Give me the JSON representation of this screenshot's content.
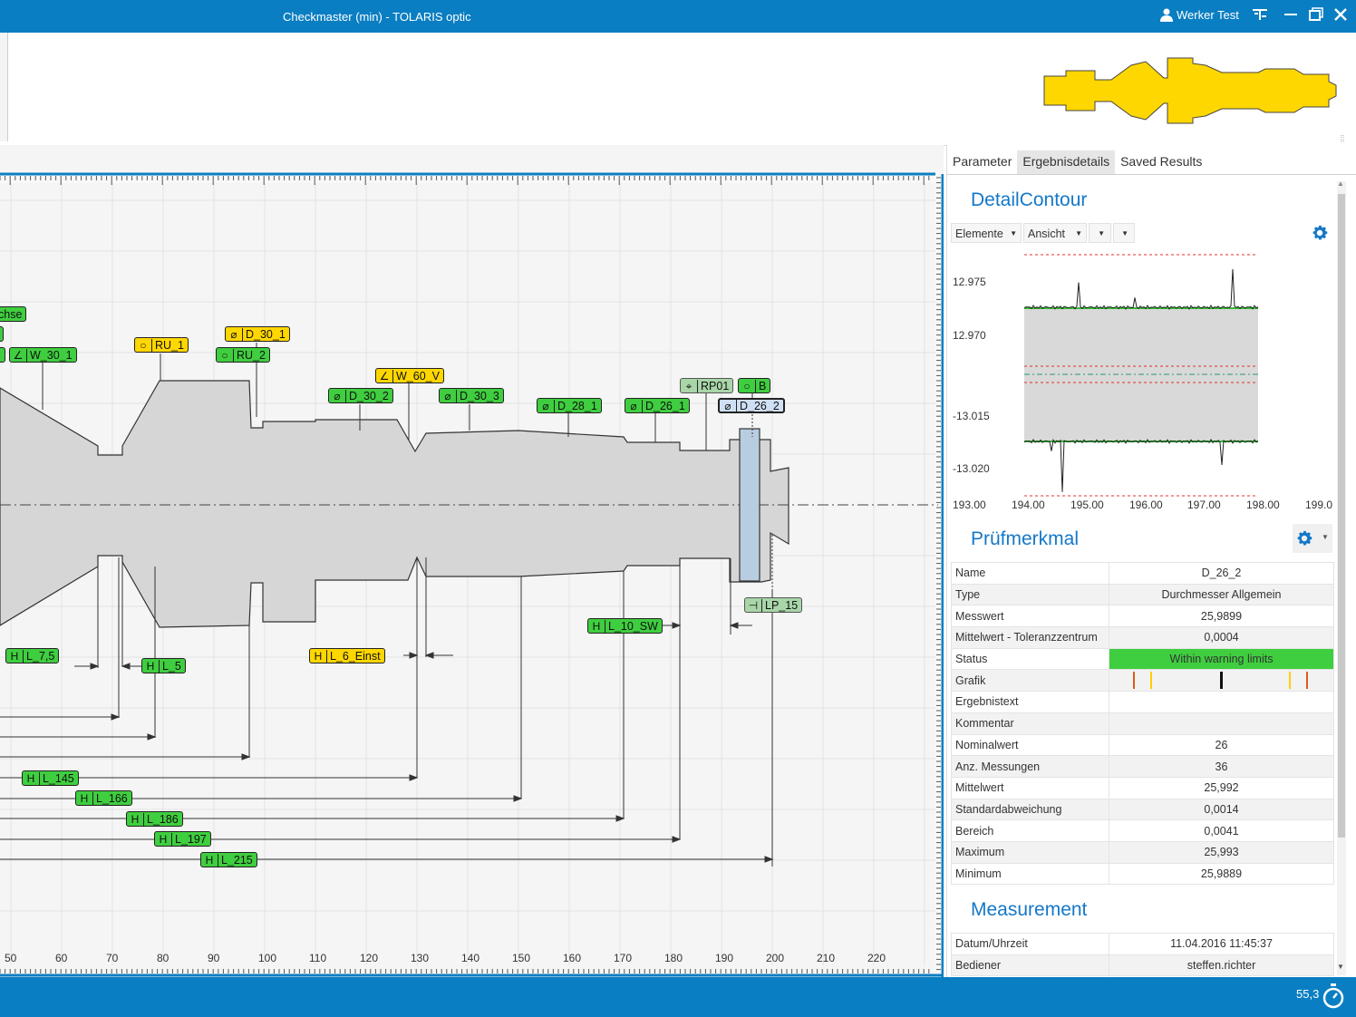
{
  "window": {
    "title": "Checkmaster (min) - TOLARIS optic",
    "user": "Werker  Test"
  },
  "tabs": [
    "Parameter",
    "Ergebnisdetails",
    "Saved Results"
  ],
  "detail_contour": {
    "title": "DetailContour",
    "dropdowns": [
      "Elemente",
      "Ansicht",
      "",
      ""
    ],
    "chart_data": {
      "type": "line",
      "title": "",
      "xlabel": "",
      "ylabel": "",
      "x_ticks": [
        "193.00",
        "194.00",
        "195.00",
        "196.00",
        "197.00",
        "198.00",
        "199.0"
      ],
      "y_ticks": [
        "12.975",
        "12.970",
        "-13.015",
        "-13.020"
      ],
      "xlim": [
        193.0,
        199.0
      ],
      "series": [
        {
          "x": [
            194.0,
            194.5,
            195.0,
            195.5,
            196.0,
            196.5,
            197.0,
            197.5,
            198.0
          ],
          "y": [
            12.9725,
            12.9725,
            12.9726,
            12.9724,
            12.9725,
            12.9726,
            12.9725,
            12.9727,
            12.9725
          ]
        },
        {
          "x": [
            194.0,
            194.5,
            195.0,
            195.5,
            196.0,
            196.5,
            197.0,
            197.5,
            198.0
          ],
          "y": [
            -13.0135,
            -13.0136,
            -13.0135,
            -13.0134,
            -13.0135,
            -13.0136,
            -13.0135,
            -13.0137,
            -13.0135
          ]
        }
      ],
      "grid": false
    }
  },
  "pruefmerkmal": {
    "title": "Prüfmerkmal",
    "rows": [
      {
        "k": "Name",
        "v": "D_26_2"
      },
      {
        "k": "Type",
        "v": "Durchmesser Allgemein"
      },
      {
        "k": "Messwert",
        "v": "25,9899"
      },
      {
        "k": "Mittelwert - Toleranzzentrum",
        "v": "0,0004"
      },
      {
        "k": "Status",
        "v": "Within warning limits"
      },
      {
        "k": "Grafik",
        "v": ""
      },
      {
        "k": "Ergebnistext",
        "v": ""
      },
      {
        "k": "Kommentar",
        "v": ""
      },
      {
        "k": "Nominalwert",
        "v": "26"
      },
      {
        "k": "Anz. Messungen",
        "v": "36"
      },
      {
        "k": "Mittelwert",
        "v": "25,992"
      },
      {
        "k": "Standardabweichung",
        "v": "0,0014"
      },
      {
        "k": "Bereich",
        "v": "0,0041"
      },
      {
        "k": "Maximum",
        "v": "25,993"
      },
      {
        "k": "Minimum",
        "v": "25,9889"
      }
    ],
    "status_color": "#3fce3f"
  },
  "measurement": {
    "title": "Measurement",
    "rows": [
      {
        "k": "Datum/Uhrzeit",
        "v": "11.04.2016 11:45:37"
      },
      {
        "k": "Bediener",
        "v": "steffen.richter"
      }
    ]
  },
  "ruler": {
    "labels": [
      "50",
      "60",
      "70",
      "80",
      "90",
      "100",
      "110",
      "120",
      "130",
      "140",
      "150",
      "160",
      "170",
      "180",
      "190",
      "200",
      "210",
      "220"
    ]
  },
  "tags": {
    "t01": {
      "sym": "",
      "label": "chse",
      "color": "g"
    },
    "t02": {
      "sym": "∠",
      "label": "W_30_1",
      "color": "g"
    },
    "t03": {
      "sym": "○",
      "label": "RU_1",
      "color": "y"
    },
    "t04": {
      "sym": "⌀",
      "label": "D_30_1",
      "color": "y"
    },
    "t05": {
      "sym": "○",
      "label": "RU_2",
      "color": "g"
    },
    "t06": {
      "sym": "∠",
      "label": "W_60_V",
      "color": "y"
    },
    "t07": {
      "sym": "⌀",
      "label": "D_30_2",
      "color": "g"
    },
    "t08": {
      "sym": "⌀",
      "label": "D_30_3",
      "color": "g"
    },
    "t09": {
      "sym": "⌀",
      "label": "D_28_1",
      "color": "g"
    },
    "t10": {
      "sym": "⌀",
      "label": "D_26_1",
      "color": "g"
    },
    "t11": {
      "sym": "⌖",
      "label": "RP01",
      "color": "gr"
    },
    "t12": {
      "sym": "○",
      "label": "B",
      "color": "g"
    },
    "t13": {
      "sym": "⌀",
      "label": "D_26_2",
      "color": "sel"
    },
    "t14": {
      "sym": "⊣",
      "label": "LP_15",
      "color": "gr"
    },
    "t15": {
      "sym": "H",
      "label": "L_10_SW",
      "color": "g"
    },
    "t16": {
      "sym": "H",
      "label": "L_7,5",
      "color": "g"
    },
    "t17": {
      "sym": "H",
      "label": "L_5",
      "color": "g"
    },
    "t18": {
      "sym": "H",
      "label": "L_6_Einst",
      "color": "y"
    },
    "t19": {
      "sym": "H",
      "label": "L_145",
      "color": "g"
    },
    "t20": {
      "sym": "H",
      "label": "L_166",
      "color": "g"
    },
    "t21": {
      "sym": "H",
      "label": "L_186",
      "color": "g"
    },
    "t22": {
      "sym": "H",
      "label": "L_197",
      "color": "g"
    },
    "t23": {
      "sym": "H",
      "label": "L_215",
      "color": "g"
    }
  },
  "statusbar": {
    "zoom": "55,3"
  },
  "colors": {
    "accent": "#0a7ec2",
    "title_blue": "#1478c8",
    "part_fill": "#d8d8d8",
    "thumbnail_fill": "#ffd700"
  }
}
